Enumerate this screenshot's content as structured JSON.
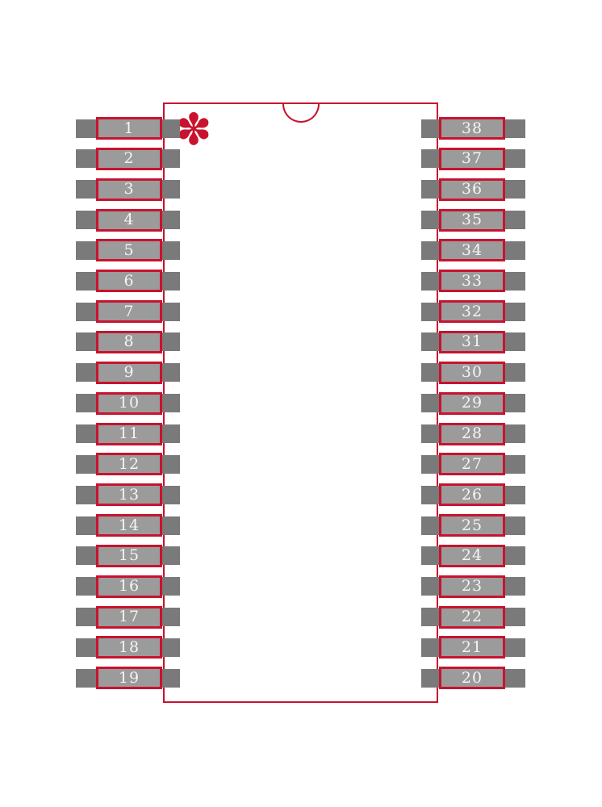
{
  "footprint": {
    "pin1_marker_glyph": "✽",
    "left_column_pins": [
      "1",
      "2",
      "3",
      "4",
      "5",
      "6",
      "7",
      "8",
      "9",
      "10",
      "11",
      "12",
      "13",
      "14",
      "15",
      "16",
      "17",
      "18",
      "19"
    ],
    "right_column_pins": [
      "38",
      "37",
      "36",
      "35",
      "34",
      "33",
      "32",
      "31",
      "30",
      "29",
      "28",
      "27",
      "26",
      "25",
      "24",
      "23",
      "22",
      "21",
      "20"
    ],
    "colors": {
      "outline_red": "#c8132f",
      "pad_gray": "#7a7a7a",
      "lead_gray": "#9b9b9b",
      "pin_number_text": "#f4f4f4",
      "background": "#ffffff"
    }
  }
}
